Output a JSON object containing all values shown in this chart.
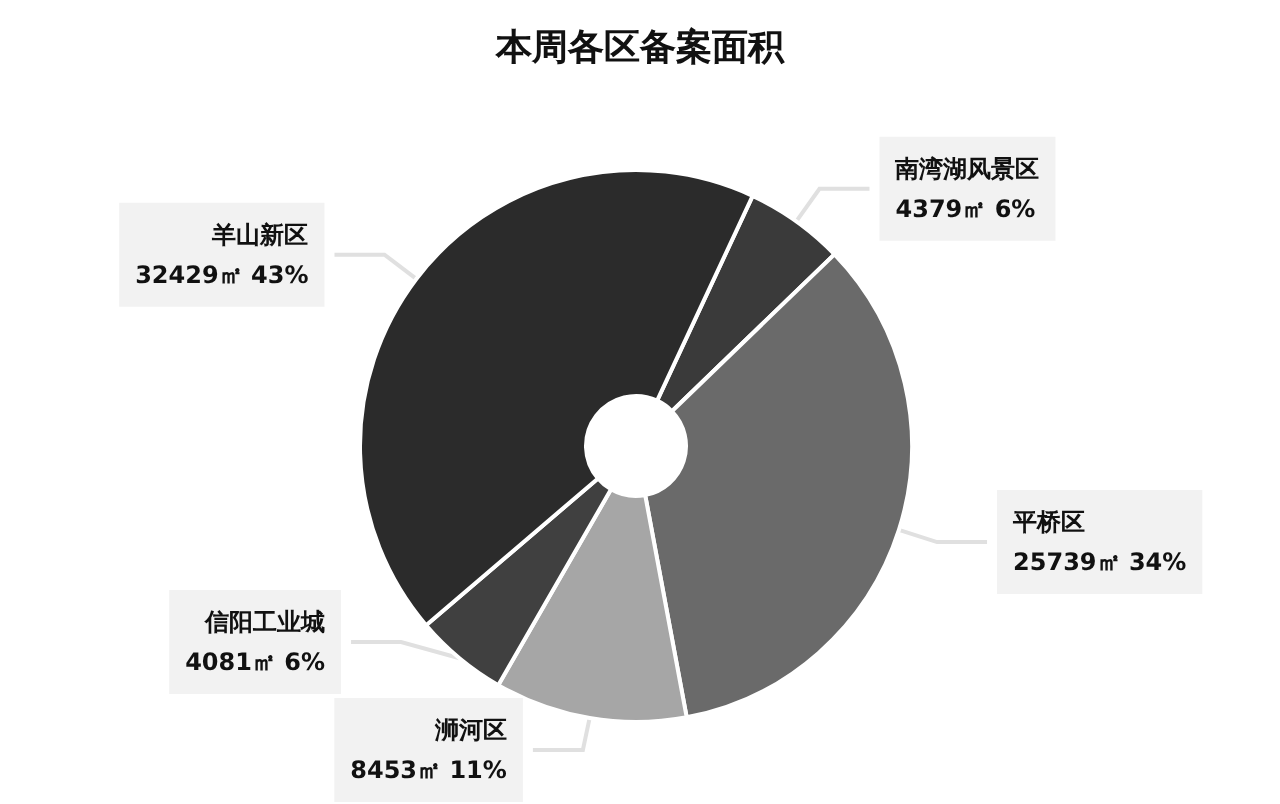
{
  "chart_data": {
    "type": "donut",
    "title": "本周各区备案面积",
    "categories": [
      "南湾湖风景区",
      "平桥区",
      "浉河区",
      "信阳工业城",
      "羊山新区"
    ],
    "values": [
      4379,
      25739,
      8453,
      4081,
      32429
    ],
    "value_labels": [
      "4379㎡ 6%",
      "25739㎡ 34%",
      "8453㎡ 11%",
      "4081㎡ 6%",
      "32429㎡ 43%"
    ],
    "colors": [
      "#3a3a3a",
      "#6a6a6a",
      "#a6a6a6",
      "#404040",
      "#2b2b2b"
    ],
    "legend": false
  }
}
